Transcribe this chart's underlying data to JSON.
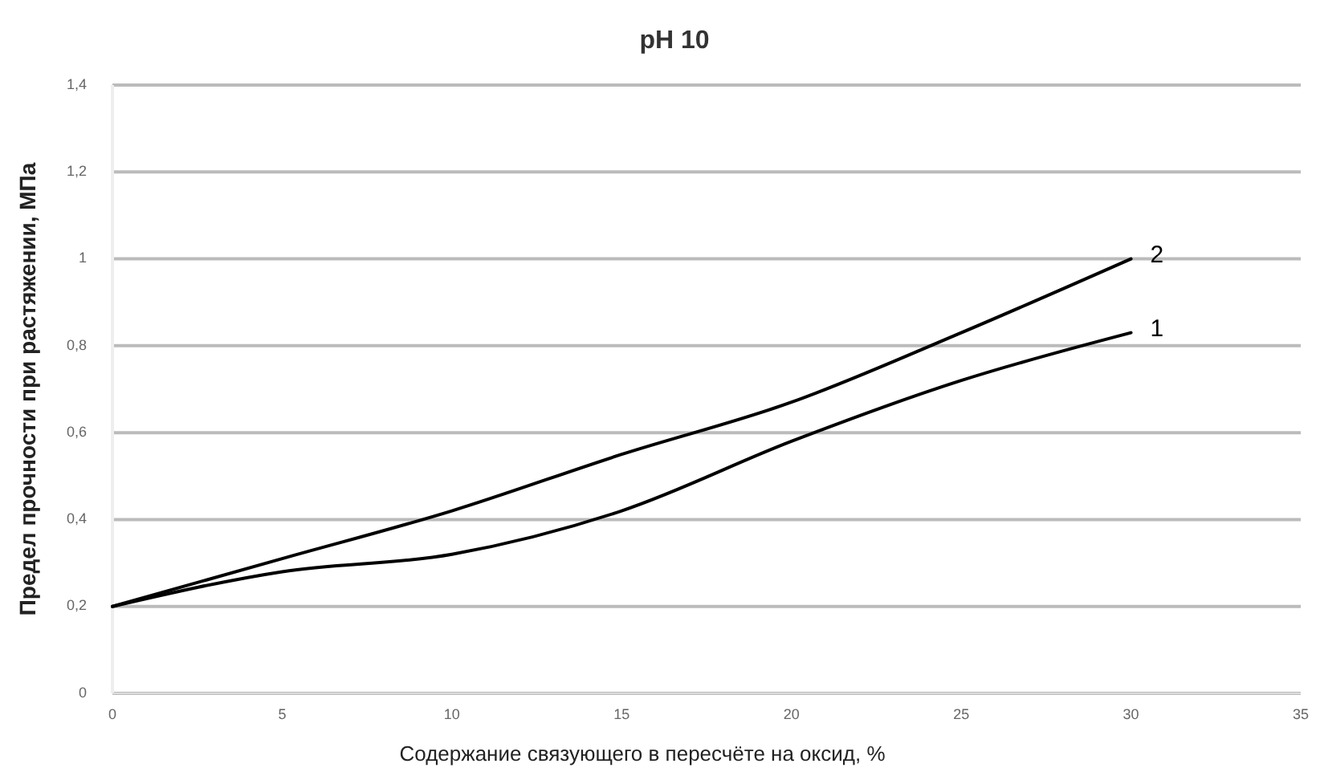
{
  "chart_data": {
    "type": "line",
    "title": "pH 10",
    "xlabel": "Содержание связующего в пересчёте на оксид, %",
    "ylabel": "Предел прочности при растяжении, МПа",
    "x": [
      0,
      5,
      10,
      15,
      20,
      25,
      30
    ],
    "series": [
      {
        "name": "1",
        "color": "#000000",
        "values": [
          0.2,
          0.28,
          0.32,
          0.42,
          0.58,
          0.72,
          0.83
        ]
      },
      {
        "name": "2",
        "color": "#000000",
        "values": [
          0.2,
          0.31,
          0.42,
          0.55,
          0.67,
          0.83,
          1.0
        ]
      }
    ],
    "xlim": [
      0,
      35
    ],
    "xticks": [
      0,
      5,
      10,
      15,
      20,
      25,
      30,
      35
    ],
    "ylim": [
      0,
      1.4
    ],
    "yticks": [
      0,
      {
        "value": 0.2,
        "label": "0,2"
      },
      {
        "value": 0.4,
        "label": "0,4"
      },
      {
        "value": 0.6,
        "label": "0,6"
      },
      {
        "value": 0.8,
        "label": "0,8"
      },
      1,
      {
        "value": 1.2,
        "label": "1,2"
      },
      {
        "value": 1.4,
        "label": "1,4"
      }
    ],
    "grid": "y",
    "marker": "none",
    "line_style": "solid"
  }
}
